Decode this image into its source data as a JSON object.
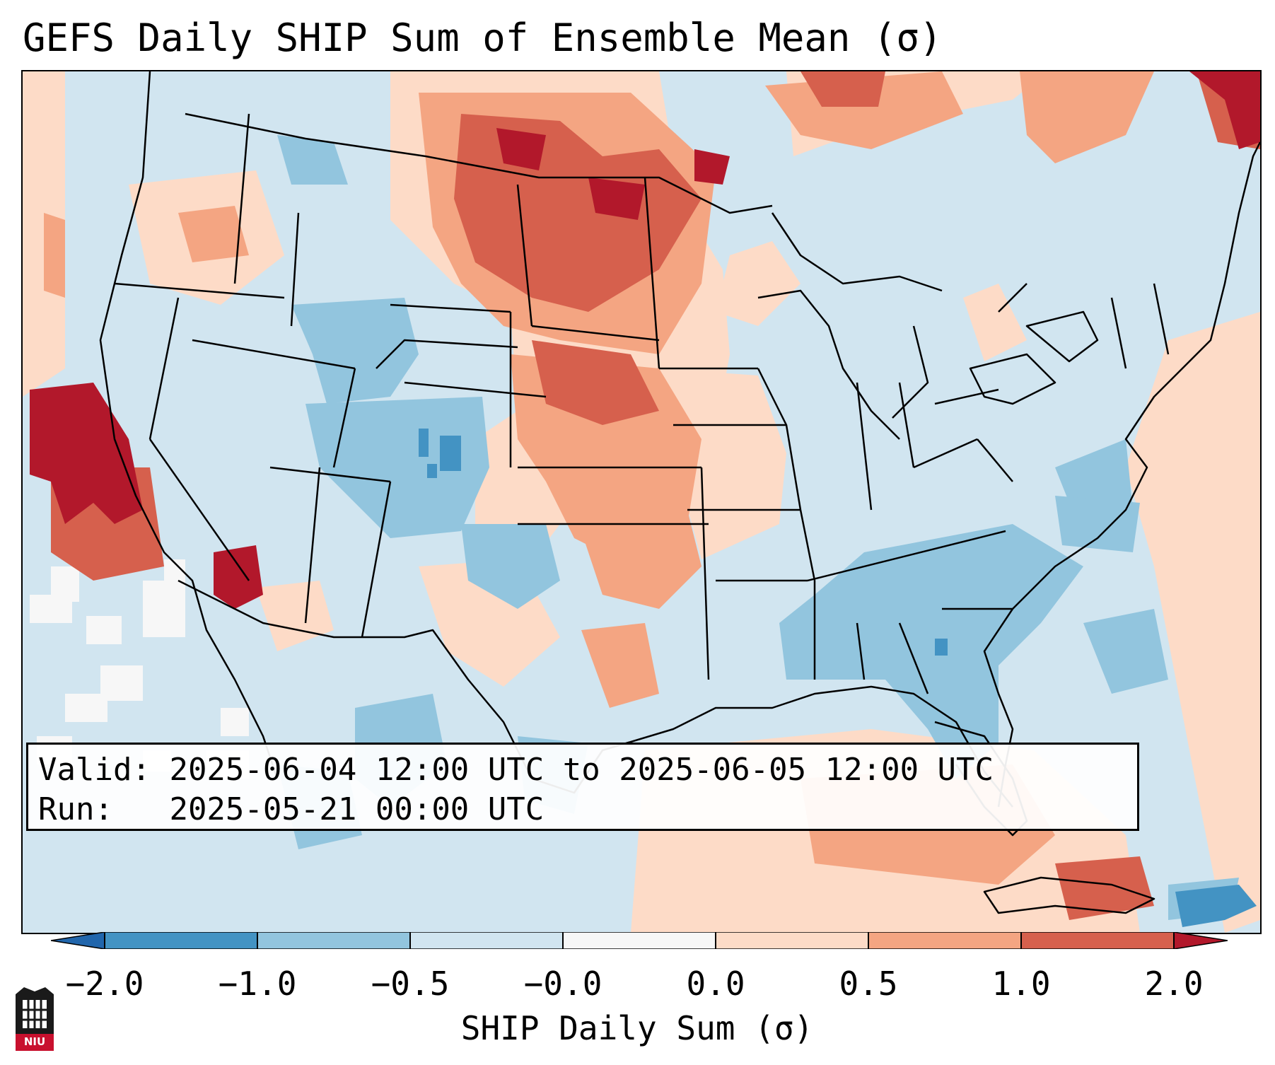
{
  "title": "GEFS Daily SHIP Sum of Ensemble Mean (σ)",
  "info": {
    "valid_label": "Valid:",
    "valid_value": "2025-06-04 12:00 UTC to 2025-06-05 12:00 UTC",
    "run_label": "Run:",
    "run_value": "2025-05-21 00:00 UTC"
  },
  "colorbar": {
    "label": "SHIP Daily Sum (σ)",
    "ticks": [
      "−2.0",
      "−1.0",
      "−0.5",
      "−0.0",
      "0.0",
      "0.5",
      "1.0",
      "2.0"
    ],
    "colors": [
      "#4393c3",
      "#92c5de",
      "#d1e5f0",
      "#f7f7f7",
      "#fddbc7",
      "#f4a582",
      "#d6604d"
    ],
    "under_color": "#2166ac",
    "over_color": "#b2182b"
  },
  "map": {
    "projection": "Lambert Conformal (CONUS)",
    "regions": [
      {
        "name": "Northern Plains",
        "category": "1.0 to 2.0"
      },
      {
        "name": "Dakotas / Nebraska",
        "category": "0.5 to 1.0"
      },
      {
        "name": "Central California coast",
        "category": "> 2.0"
      },
      {
        "name": "Colorado / Utah",
        "category": "-1.0 to -0.5"
      },
      {
        "name": "Southeast (GA / SC / AL)",
        "category": "-1.0 to -0.5"
      },
      {
        "name": "Gulf of Mexico",
        "category": "0.5 to 1.0"
      },
      {
        "name": "Eastern Pacific",
        "category": "-0.0 to 0.0"
      }
    ]
  },
  "logo": {
    "text": "NIU"
  }
}
